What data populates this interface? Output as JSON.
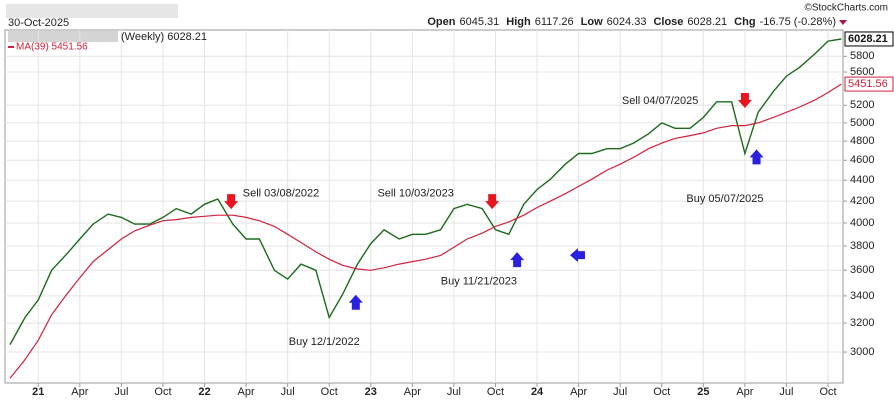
{
  "chart_data": {
    "type": "line",
    "date": "30-Oct-2025",
    "source": "©StockCharts.com",
    "quote": [
      {
        "label": "Open",
        "value": "6045.31"
      },
      {
        "label": "High",
        "value": "6117.26"
      },
      {
        "label": "Low",
        "value": "6024.33"
      },
      {
        "label": "Close",
        "value": "6028.21"
      },
      {
        "label": "Chg",
        "value": "-16.75 (-0.28%)"
      }
    ],
    "x": [
      2020.83,
      2020.92,
      2021,
      2021.08,
      2021.17,
      2021.25,
      2021.33,
      2021.42,
      2021.5,
      2021.58,
      2021.67,
      2021.75,
      2021.83,
      2021.92,
      2022,
      2022.08,
      2022.17,
      2022.25,
      2022.33,
      2022.42,
      2022.5,
      2022.58,
      2022.67,
      2022.75,
      2022.83,
      2022.92,
      2023,
      2023.08,
      2023.17,
      2023.25,
      2023.33,
      2023.42,
      2023.5,
      2023.58,
      2023.67,
      2023.75,
      2023.83,
      2023.92,
      2024,
      2024.08,
      2024.17,
      2024.25,
      2024.33,
      2024.42,
      2024.5,
      2024.58,
      2024.67,
      2024.75,
      2024.83,
      2024.92,
      2025,
      2025.08,
      2025.17,
      2025.25,
      2025.33,
      2025.42,
      2025.5,
      2025.58,
      2025.67,
      2025.75,
      2025.83
    ],
    "series": [
      {
        "name": "(Weekly) 6028.21",
        "color": "#1b6b1b",
        "values": [
          3050,
          3240,
          3370,
          3600,
          3730,
          3860,
          3990,
          4080,
          4050,
          3990,
          3990,
          4050,
          4130,
          4080,
          4170,
          4220,
          3990,
          3860,
          3860,
          3600,
          3530,
          3650,
          3600,
          3240,
          3410,
          3650,
          3820,
          3940,
          3860,
          3900,
          3900,
          3940,
          4130,
          4170,
          4130,
          3940,
          3900,
          4170,
          4310,
          4410,
          4560,
          4670,
          4670,
          4720,
          4720,
          4780,
          4880,
          5000,
          4940,
          4940,
          5060,
          5240,
          5240,
          4670,
          5120,
          5360,
          5550,
          5660,
          5830,
          6000,
          6028.21
        ]
      },
      {
        "name": "MA(39) 5451.56",
        "color": "#d0213d",
        "values": [
          2830,
          2950,
          3080,
          3260,
          3410,
          3540,
          3670,
          3770,
          3860,
          3930,
          3980,
          4020,
          4030,
          4050,
          4060,
          4070,
          4070,
          4050,
          4020,
          3970,
          3900,
          3830,
          3750,
          3690,
          3640,
          3610,
          3600,
          3620,
          3650,
          3670,
          3690,
          3720,
          3790,
          3860,
          3910,
          3970,
          4010,
          4070,
          4140,
          4200,
          4270,
          4340,
          4410,
          4500,
          4560,
          4630,
          4720,
          4780,
          4830,
          4860,
          4890,
          4940,
          4970,
          4970,
          5000,
          5060,
          5120,
          5180,
          5260,
          5350,
          5451.56
        ]
      }
    ],
    "xlim": [
      2020.8,
      2025.84
    ],
    "xticks": [
      {
        "value": 2021,
        "label": "21"
      },
      {
        "value": 2021.25,
        "label": "Apr"
      },
      {
        "value": 2021.5,
        "label": "Jul"
      },
      {
        "value": 2021.75,
        "label": "Oct"
      },
      {
        "value": 2022,
        "label": "22"
      },
      {
        "value": 2022.25,
        "label": "Apr"
      },
      {
        "value": 2022.5,
        "label": "Jul"
      },
      {
        "value": 2022.75,
        "label": "Oct"
      },
      {
        "value": 2023,
        "label": "23"
      },
      {
        "value": 2023.25,
        "label": "Apr"
      },
      {
        "value": 2023.5,
        "label": "Jul"
      },
      {
        "value": 2023.75,
        "label": "Oct"
      },
      {
        "value": 2024,
        "label": "24"
      },
      {
        "value": 2024.25,
        "label": "Apr"
      },
      {
        "value": 2024.5,
        "label": "Jul"
      },
      {
        "value": 2024.75,
        "label": "Oct"
      },
      {
        "value": 2025,
        "label": "25"
      },
      {
        "value": 2025.25,
        "label": "Apr"
      },
      {
        "value": 2025.5,
        "label": "Jul"
      },
      {
        "value": 2025.75,
        "label": "Oct"
      }
    ],
    "ylim": [
      2800,
      6150
    ],
    "yticks": [
      3000,
      3200,
      3400,
      3600,
      3800,
      4000,
      4200,
      4400,
      4600,
      4800,
      5000,
      5200,
      5600,
      5800
    ],
    "log_scale": true,
    "grid": true,
    "annotations": [
      {
        "text": "Sell 03/08/2022",
        "x": 2022.46,
        "y": 4270
      },
      {
        "text": "Buy 12/1/2022",
        "x": 2022.72,
        "y": 3068
      },
      {
        "text": "Sell 10/03/2023",
        "x": 2023.27,
        "y": 4270
      },
      {
        "text": "Buy 11/21/2023",
        "x": 2023.65,
        "y": 3510
      },
      {
        "text": "Sell 04/07/2025",
        "x": 2024.74,
        "y": 5250
      },
      {
        "text": "Buy 05/07/2025",
        "x": 2025.13,
        "y": 4220
      }
    ],
    "markers": [
      {
        "x": 2022.16,
        "y": 4190,
        "direction": "down",
        "color": "#e8141e"
      },
      {
        "x": 2022.91,
        "y": 3356,
        "direction": "up",
        "color": "#2a20e0"
      },
      {
        "x": 2023.73,
        "y": 4190,
        "direction": "down",
        "color": "#e8141e"
      },
      {
        "x": 2023.88,
        "y": 3690,
        "direction": "up",
        "color": "#2a20e0"
      },
      {
        "x": 2024.24,
        "y": 3723,
        "direction": "left",
        "color": "#2a20e0"
      },
      {
        "x": 2025.25,
        "y": 5250,
        "direction": "down",
        "color": "#e8141e"
      },
      {
        "x": 2025.32,
        "y": 4640,
        "direction": "up",
        "color": "#2a20e0"
      }
    ]
  }
}
